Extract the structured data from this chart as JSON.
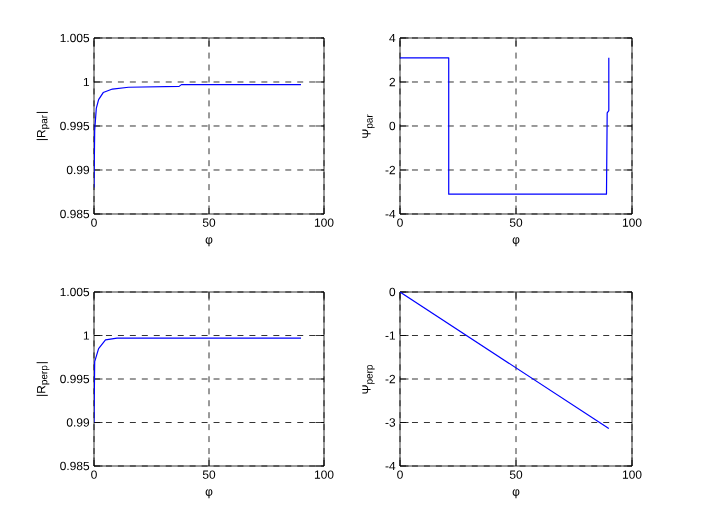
{
  "chart_data": [
    {
      "type": "line",
      "xlabel": "φ",
      "ylabel": "|R$_{par}$|",
      "color": "#0000ff",
      "grid": true,
      "xlim": [
        0,
        100
      ],
      "xticks": [
        0,
        50,
        100
      ],
      "ylim": [
        0.985,
        1.005
      ],
      "yticks": [
        0.985,
        0.99,
        0.995,
        1,
        1.005
      ],
      "x": [
        0,
        0.3,
        1,
        2,
        4,
        8,
        15,
        37,
        38,
        90
      ],
      "values": [
        0.988,
        0.9945,
        0.997,
        0.998,
        0.9988,
        0.9992,
        0.9994,
        0.9995,
        0.9997,
        0.9997
      ]
    },
    {
      "type": "line",
      "xlabel": "φ",
      "ylabel": "Ψ$_{par}$",
      "color": "#0000ff",
      "grid": true,
      "xlim": [
        0,
        100
      ],
      "xticks": [
        0,
        50,
        100
      ],
      "ylim": [
        -4,
        4
      ],
      "yticks": [
        -4,
        -2,
        0,
        2,
        4
      ],
      "x": [
        0,
        21,
        21,
        89,
        89.3,
        90,
        90
      ],
      "values": [
        3.1,
        3.1,
        -3.1,
        -3.1,
        0.6,
        0.7,
        3.1
      ]
    },
    {
      "type": "line",
      "xlabel": "φ",
      "ylabel": "|R$_{perp}$|",
      "color": "#0000ff",
      "grid": true,
      "xlim": [
        0,
        100
      ],
      "xticks": [
        0,
        50,
        100
      ],
      "ylim": [
        0.985,
        1.005
      ],
      "yticks": [
        0.985,
        0.99,
        0.995,
        1,
        1.005
      ],
      "x": [
        0,
        0.3,
        2,
        5,
        10,
        90
      ],
      "values": [
        0.99,
        0.997,
        0.9985,
        0.9995,
        0.9997,
        0.9997
      ]
    },
    {
      "type": "line",
      "xlabel": "φ",
      "ylabel": "Ψ$_{perp}$",
      "color": "#0000ff",
      "grid": true,
      "xlim": [
        0,
        100
      ],
      "xticks": [
        0,
        50,
        100
      ],
      "ylim": [
        -4,
        0
      ],
      "yticks": [
        -4,
        -3,
        -2,
        -1,
        0
      ],
      "x": [
        0,
        90
      ],
      "values": [
        0,
        -3.14
      ]
    }
  ]
}
